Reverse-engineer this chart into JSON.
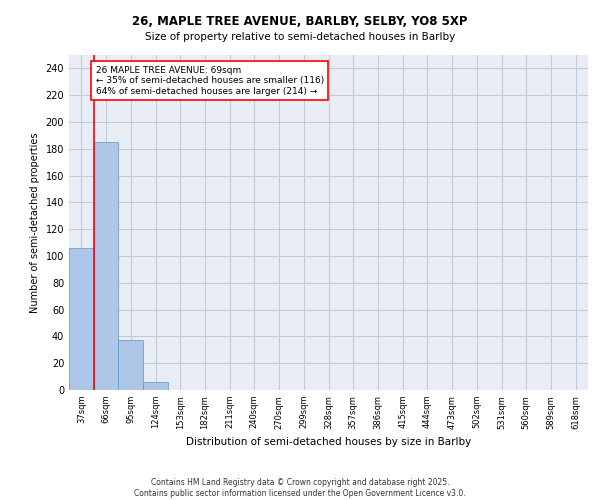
{
  "title_line1": "26, MAPLE TREE AVENUE, BARLBY, SELBY, YO8 5XP",
  "title_line2": "Size of property relative to semi-detached houses in Barlby",
  "xlabel": "Distribution of semi-detached houses by size in Barlby",
  "ylabel": "Number of semi-detached properties",
  "categories": [
    "37sqm",
    "66sqm",
    "95sqm",
    "124sqm",
    "153sqm",
    "182sqm",
    "211sqm",
    "240sqm",
    "270sqm",
    "299sqm",
    "328sqm",
    "357sqm",
    "386sqm",
    "415sqm",
    "444sqm",
    "473sqm",
    "502sqm",
    "531sqm",
    "560sqm",
    "589sqm",
    "618sqm"
  ],
  "values": [
    106,
    185,
    37,
    6,
    0,
    0,
    0,
    0,
    0,
    0,
    0,
    0,
    0,
    0,
    0,
    0,
    0,
    0,
    0,
    0,
    0
  ],
  "bar_color": "#aec6e8",
  "bar_edge_color": "#5a96c8",
  "annotation_text_line1": "26 MAPLE TREE AVENUE: 69sqm",
  "annotation_text_line2": "← 35% of semi-detached houses are smaller (116)",
  "annotation_text_line3": "64% of semi-detached houses are larger (214) →",
  "ylim": [
    0,
    250
  ],
  "yticks": [
    0,
    20,
    40,
    60,
    80,
    100,
    120,
    140,
    160,
    180,
    200,
    220,
    240
  ],
  "grid_color": "#c0c8d8",
  "bg_color": "#e8edf5",
  "footer": "Contains HM Land Registry data © Crown copyright and database right 2025.\nContains public sector information licensed under the Open Government Licence v3.0."
}
